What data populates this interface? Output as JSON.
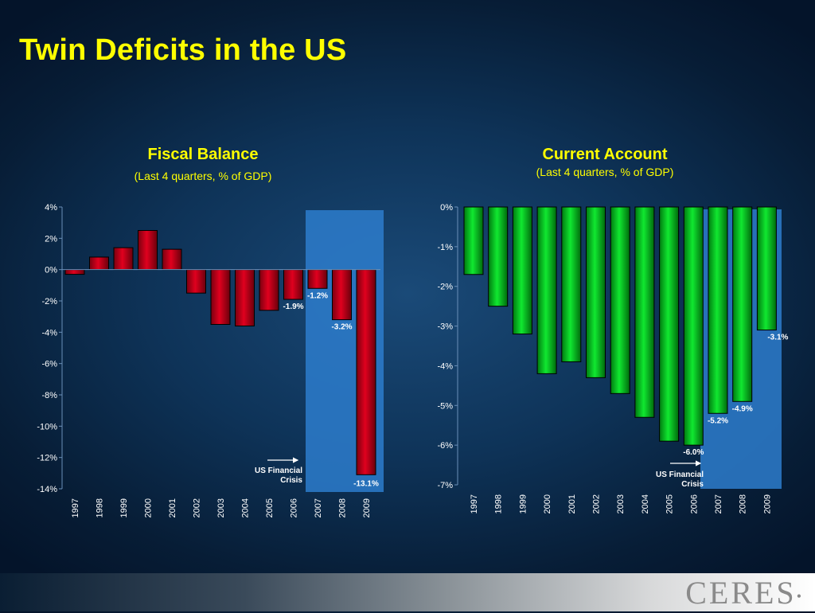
{
  "page": {
    "title": "Twin Deficits in the US"
  },
  "logo": {
    "text": "CERES",
    "mark": "•"
  },
  "colors": {
    "title": "#ffff00",
    "fiscal_bar": "#c8001e",
    "current_bar": "#00d41e",
    "crisis_band": "#2d7ccc",
    "axis_text": "#ffffff"
  },
  "chart_data": [
    {
      "id": "fiscal",
      "type": "bar",
      "title": "Fiscal Balance",
      "subtitle": "(Last 4 quarters, % of GDP)",
      "categories": [
        "1997",
        "1998",
        "1999",
        "2000",
        "2001",
        "2002",
        "2003",
        "2004",
        "2005",
        "2006",
        "2007",
        "2008",
        "2009"
      ],
      "values": [
        -0.3,
        0.8,
        1.4,
        2.5,
        1.3,
        -1.5,
        -3.5,
        -3.6,
        -2.6,
        -1.9,
        -1.2,
        -3.2,
        -13.1
      ],
      "ylim": [
        -14,
        4
      ],
      "yticks": [
        4,
        2,
        0,
        -2,
        -4,
        -6,
        -8,
        -10,
        -12,
        -14
      ],
      "ytick_labels": [
        "4%",
        "2%",
        "0%",
        "-2%",
        "-4%",
        "-6%",
        "-8%",
        "-10%",
        "-12%",
        "-14%"
      ],
      "data_labels": [
        {
          "category": "2006",
          "text": "-1.9%"
        },
        {
          "category": "2007",
          "text": "-1.2%"
        },
        {
          "category": "2008",
          "text": "-3.2%"
        },
        {
          "category": "2009",
          "text": "-13.1%"
        }
      ],
      "highlight": {
        "from": "2007",
        "to": "2009"
      },
      "annotation": "US Financial Crisis",
      "annotation_lines": [
        "US Financial",
        "Crisis"
      ]
    },
    {
      "id": "current",
      "type": "bar",
      "title": "Current Account",
      "subtitle": "(Last 4 quarters, % of GDP)",
      "categories": [
        "1997",
        "1998",
        "1999",
        "2000",
        "2001",
        "2002",
        "2003",
        "2004",
        "2005",
        "2006",
        "2007",
        "2008",
        "2009"
      ],
      "values": [
        -1.7,
        -2.5,
        -3.2,
        -4.2,
        -3.9,
        -4.3,
        -4.7,
        -5.3,
        -5.9,
        -6.0,
        -5.2,
        -4.9,
        -3.1
      ],
      "ylim": [
        -7,
        0
      ],
      "yticks": [
        0,
        -1,
        -2,
        -3,
        -4,
        -5,
        -6,
        -7
      ],
      "ytick_labels": [
        "0%",
        "-1%",
        "-2%",
        "-3%",
        "-4%",
        "-5%",
        "-6%",
        "-7%"
      ],
      "data_labels": [
        {
          "category": "2006",
          "text": "-6.0%"
        },
        {
          "category": "2007",
          "text": "-5.2%"
        },
        {
          "category": "2008",
          "text": "-4.9%"
        },
        {
          "category": "2009",
          "text": "-3.1%"
        }
      ],
      "highlight": {
        "from": "2007",
        "to": "2009"
      },
      "annotation": "US Financial Crisis",
      "annotation_lines": [
        "US Financial",
        "Crisis"
      ]
    }
  ]
}
